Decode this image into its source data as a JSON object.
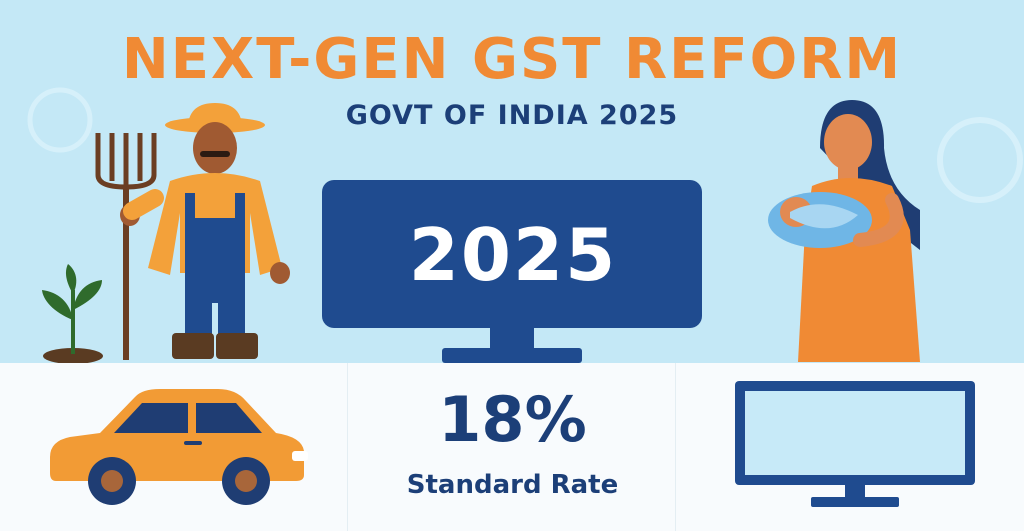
{
  "header": {
    "title": "NEXT-GEN GST REFORM",
    "subtitle": "GOVT OF INDIA 2025"
  },
  "monitor_display": {
    "year": "2025"
  },
  "rate_panel": {
    "value": "18%",
    "label": "Standard Rate"
  },
  "colors": {
    "accent_orange": "#f08a34",
    "navy": "#1c3f78",
    "sky": "#c4e8f6",
    "monitor_blue": "#1f4b8f"
  },
  "icons": [
    "farmer-illustration",
    "pitchfork-icon",
    "plant-icon",
    "mother-with-baby-illustration",
    "car-icon",
    "monitor-icon"
  ]
}
